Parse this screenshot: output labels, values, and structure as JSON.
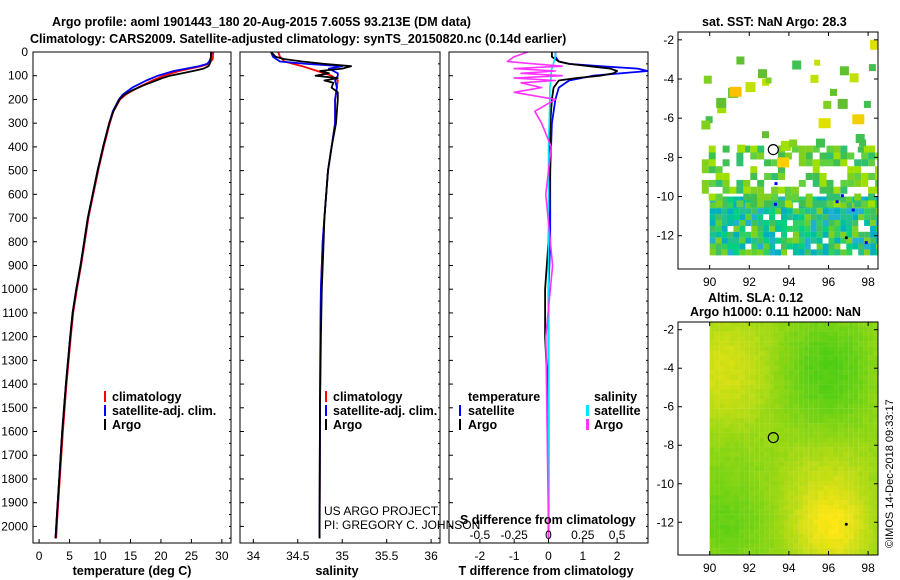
{
  "title": {
    "line1": "Argo profile: aoml 1901443_180 20-Aug-2015 7.605S 93.213E (DM data)",
    "line2": "Climatology: CARS2009. Satellite-adjusted climatology: synTS_20150820.nc (0.14d earlier)"
  },
  "colors": {
    "climatology": "#ff0000",
    "satellite": "#0000ff",
    "argo": "#000000",
    "salinity_satellite": "#00e5ff",
    "salinity_argo": "#ff33ff"
  },
  "chart_data": [
    {
      "type": "line",
      "name": "temperature-profile",
      "xlabel": "temperature (deg C)",
      "xlim": [
        -1,
        31.5
      ],
      "xticks": [
        0,
        5,
        10,
        15,
        20,
        25,
        30
      ],
      "ylim": [
        2070,
        0
      ],
      "yticks": [
        0,
        100,
        200,
        300,
        400,
        500,
        600,
        700,
        800,
        900,
        1000,
        1100,
        1200,
        1300,
        1400,
        1500,
        1600,
        1700,
        1800,
        1900,
        2000
      ],
      "legend": [
        "climatology",
        "satellite-adj. clim.",
        "Argo"
      ],
      "series": [
        {
          "name": "climatology",
          "depth": [
            0,
            30,
            50,
            60,
            80,
            100,
            120,
            150,
            180,
            200,
            250,
            300,
            400,
            500,
            600,
            700,
            800,
            900,
            1000,
            1100,
            1200,
            1400,
            1600,
            1800,
            2000,
            2050
          ],
          "values": [
            28.6,
            28.5,
            27.9,
            26.6,
            23.0,
            20.5,
            18.6,
            16.2,
            14.2,
            13.3,
            12.2,
            11.6,
            10.6,
            9.7,
            8.9,
            8.1,
            7.5,
            6.9,
            6.2,
            5.6,
            5.2,
            4.5,
            3.9,
            3.4,
            2.9,
            2.8
          ]
        },
        {
          "name": "satellite-adj. clim.",
          "depth": [
            0,
            30,
            50,
            60,
            80,
            100,
            120,
            150,
            180,
            200,
            250,
            300,
            400,
            500,
            600,
            700,
            800,
            900,
            1000,
            1100,
            1200,
            1400,
            1600,
            1800,
            2000,
            2050
          ],
          "values": [
            28.3,
            28.2,
            27.6,
            26.2,
            22.1,
            19.5,
            17.6,
            15.3,
            13.7,
            13.1,
            12.1,
            11.5,
            10.5,
            9.6,
            8.8,
            8.0,
            7.4,
            6.8,
            6.1,
            5.5,
            5.1,
            4.4,
            3.8,
            3.3,
            2.8,
            2.7
          ]
        },
        {
          "name": "Argo",
          "depth": [
            0,
            20,
            30,
            40,
            50,
            60,
            70,
            80,
            90,
            100,
            110,
            120,
            140,
            160,
            180,
            200,
            250,
            300,
            400,
            500,
            600,
            700,
            800,
            900,
            1000,
            1100,
            1200,
            1400,
            1600,
            1800,
            2000,
            2050
          ],
          "values": [
            28.2,
            28.2,
            28.1,
            28.1,
            28.0,
            27.8,
            27.0,
            25.3,
            23.5,
            21.5,
            20.2,
            19.2,
            17.2,
            15.4,
            14.0,
            13.2,
            12.2,
            11.5,
            10.5,
            9.6,
            8.8,
            8.0,
            7.4,
            6.8,
            6.1,
            5.5,
            5.1,
            4.4,
            3.8,
            3.3,
            2.8,
            2.7
          ]
        }
      ]
    },
    {
      "type": "line",
      "name": "salinity-profile",
      "xlabel": "salinity",
      "xlim": [
        33.85,
        36.1
      ],
      "xticks": [
        34,
        34.5,
        35,
        35.5,
        36
      ],
      "ylim": [
        2070,
        0
      ],
      "legend": [
        "climatology",
        "satellite-adj. clim.",
        "Argo"
      ],
      "series": [
        {
          "name": "climatology",
          "depth": [
            0,
            20,
            40,
            60,
            80,
            100,
            120,
            150,
            200,
            300,
            400,
            500,
            700,
            800,
            900,
            1000,
            1200,
            1500,
            2000,
            2050
          ],
          "values": [
            34.28,
            34.3,
            34.35,
            34.55,
            34.72,
            34.88,
            34.95,
            34.94,
            34.92,
            34.92,
            34.88,
            34.84,
            34.8,
            34.78,
            34.77,
            34.76,
            34.755,
            34.75,
            34.745,
            34.745
          ]
        },
        {
          "name": "satellite-adj. clim.",
          "depth": [
            0,
            20,
            40,
            50,
            60,
            70,
            80,
            90,
            100,
            120,
            150,
            200,
            300,
            400,
            500,
            700,
            800,
            900,
            1000,
            1200,
            1500,
            2000,
            2050
          ],
          "values": [
            34.2,
            34.22,
            34.3,
            34.6,
            35.0,
            34.85,
            34.9,
            34.95,
            34.95,
            34.92,
            34.94,
            34.92,
            34.92,
            34.88,
            34.84,
            34.8,
            34.78,
            34.77,
            34.76,
            34.755,
            34.75,
            34.745,
            34.745
          ]
        },
        {
          "name": "Argo",
          "depth": [
            0,
            20,
            30,
            40,
            50,
            60,
            70,
            80,
            90,
            100,
            110,
            120,
            130,
            150,
            170,
            200,
            250,
            300,
            400,
            500,
            700,
            800,
            900,
            1000,
            1200,
            1500,
            2000,
            2050
          ],
          "values": [
            34.2,
            34.25,
            34.35,
            34.55,
            34.8,
            35.1,
            35.0,
            34.75,
            34.85,
            34.7,
            34.95,
            34.8,
            34.9,
            34.88,
            34.95,
            34.95,
            34.94,
            34.93,
            34.88,
            34.84,
            34.8,
            34.79,
            34.78,
            34.77,
            34.76,
            34.75,
            34.745,
            34.745
          ]
        }
      ]
    },
    {
      "type": "line",
      "name": "difference-profile",
      "xlabel": "T difference from climatology",
      "xlabel2": "S difference from climatology",
      "xlim": [
        -2.9,
        2.9
      ],
      "xticks": [
        -2,
        -1,
        0,
        1,
        2
      ],
      "xticks2": [
        -0.5,
        -0.25,
        0,
        0.25,
        0.5
      ],
      "ylim": [
        2070,
        0
      ],
      "legend_left_header": "temperature",
      "legend_right_header": "salinity",
      "legend": [
        "satellite",
        "Argo",
        "satellite",
        "Argo"
      ],
      "series": [
        {
          "name": "temperature satellite",
          "depth": [
            0,
            20,
            40,
            50,
            60,
            70,
            80,
            100,
            120,
            150,
            200,
            300,
            500,
            800,
            1000,
            1500,
            2000,
            2050
          ],
          "values": [
            0.2,
            0.2,
            0.3,
            0.6,
            1.5,
            2.6,
            2.9,
            1.3,
            0.6,
            0.3,
            0.2,
            0.1,
            0.05,
            0.05,
            0,
            0,
            0,
            0
          ]
        },
        {
          "name": "temperature Argo",
          "depth": [
            0,
            20,
            40,
            50,
            60,
            70,
            80,
            90,
            100,
            110,
            120,
            150,
            200,
            300,
            500,
            800,
            1000,
            1200,
            1500,
            2000,
            2050
          ],
          "values": [
            0.1,
            0.1,
            0.3,
            0.6,
            1.2,
            1.8,
            2.0,
            1.9,
            1.5,
            0.8,
            0.3,
            0.15,
            0.1,
            0.05,
            0.05,
            0,
            -0.1,
            -0.1,
            0,
            0,
            0
          ]
        },
        {
          "name": "salinity satellite",
          "depth": [
            0,
            20,
            40,
            60,
            80,
            100,
            150,
            200,
            400,
            800,
            1200,
            1600,
            2000,
            2050
          ],
          "values": [
            0.05,
            0.05,
            0.04,
            0.03,
            0.02,
            0.02,
            0.01,
            0.01,
            0,
            0,
            0,
            0,
            0,
            0
          ]
        },
        {
          "name": "salinity Argo",
          "depth": [
            0,
            20,
            40,
            50,
            60,
            70,
            80,
            90,
            100,
            110,
            120,
            130,
            150,
            170,
            200,
            250,
            300,
            400,
            600,
            900,
            1200,
            2000,
            2050
          ],
          "values": [
            -0.15,
            -0.25,
            -0.3,
            -0.1,
            0.1,
            -0.25,
            0.05,
            -0.2,
            0.1,
            -0.25,
            0.05,
            -0.2,
            -0.05,
            -0.25,
            0.05,
            -0.1,
            -0.05,
            0.02,
            -0.02,
            0.03,
            -0.02,
            0,
            0
          ]
        }
      ]
    },
    {
      "type": "heatmap",
      "name": "sst-map",
      "title": "sat. SST: NaN Argo: 28.3",
      "xticks": [
        90,
        92,
        94,
        96,
        98
      ],
      "yticks": [
        -2,
        -4,
        -6,
        -8,
        -10,
        -12
      ],
      "xlim": [
        88.4,
        98.5
      ],
      "ylim": [
        -13.7,
        -1.6
      ],
      "profile_location": [
        93.213,
        -7.605
      ]
    },
    {
      "type": "heatmap",
      "name": "sla-map",
      "title": "Altim. SLA: 0.12",
      "subtitle": "Argo h1000: 0.11 h2000: NaN",
      "xticks": [
        90,
        92,
        94,
        96,
        98
      ],
      "yticks": [
        -2,
        -4,
        -6,
        -8,
        -10,
        -12
      ],
      "xlim": [
        88.4,
        98.5
      ],
      "ylim": [
        -13.7,
        -1.6
      ],
      "profile_location": [
        93.213,
        -7.605
      ]
    }
  ],
  "credit": {
    "line1": "US ARGO PROJECT",
    "line2": "PI: GREGORY C. JOHNSON"
  },
  "timestamp": "©IMOS 14-Dec-2018 09:33:17"
}
